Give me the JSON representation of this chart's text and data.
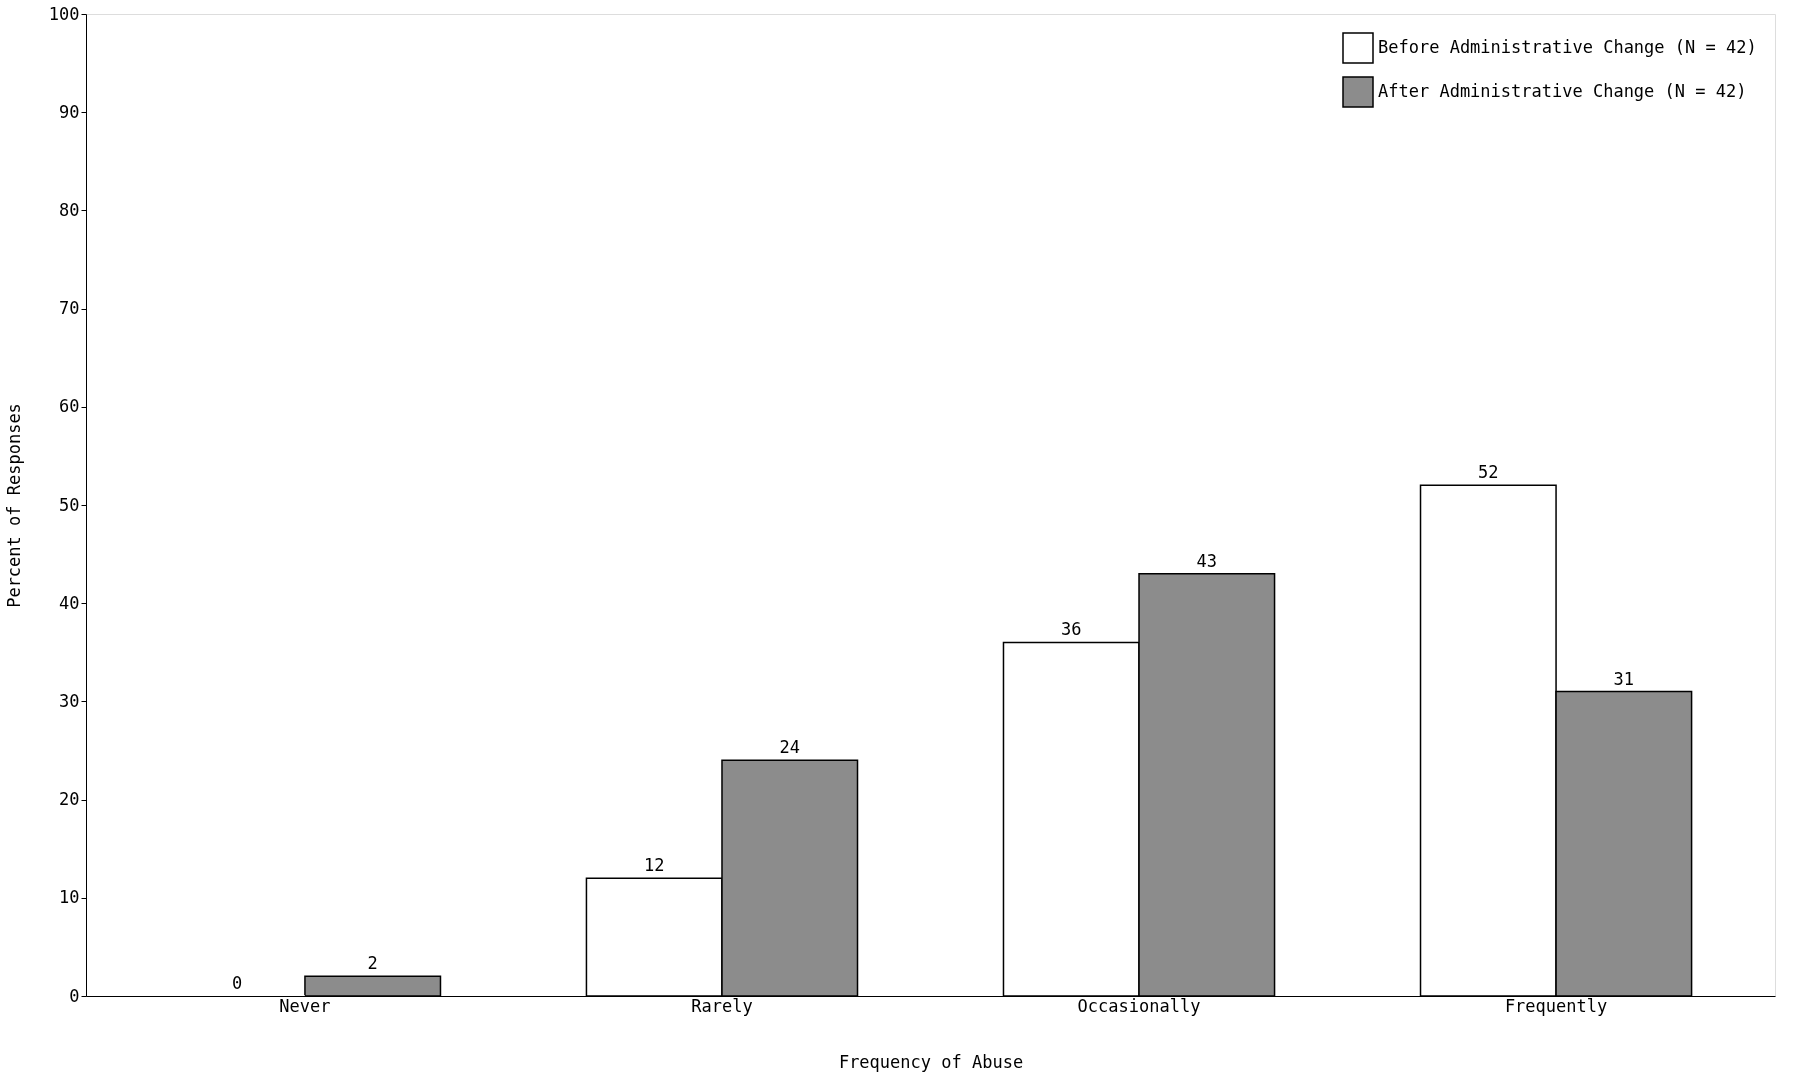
{
  "chart_data": {
    "type": "bar",
    "xlabel": "Frequency of Abuse",
    "ylabel": "Percent of Responses",
    "categories": [
      "Never",
      "Rarely",
      "Occasionally",
      "Frequently"
    ],
    "series": [
      {
        "name": "Before Administrative Change (N = 42)",
        "color": "#ffffff",
        "values": [
          0,
          12,
          36,
          52
        ]
      },
      {
        "name": "After Administrative Change  (N = 42)",
        "color": "#8c8c8c",
        "values": [
          2,
          24,
          43,
          31
        ]
      }
    ],
    "ylim": [
      0,
      100
    ],
    "yticks": [
      0,
      10,
      20,
      30,
      40,
      50,
      60,
      70,
      80,
      90,
      100
    ],
    "grid": false,
    "legend": "top right",
    "data_labels": true
  }
}
